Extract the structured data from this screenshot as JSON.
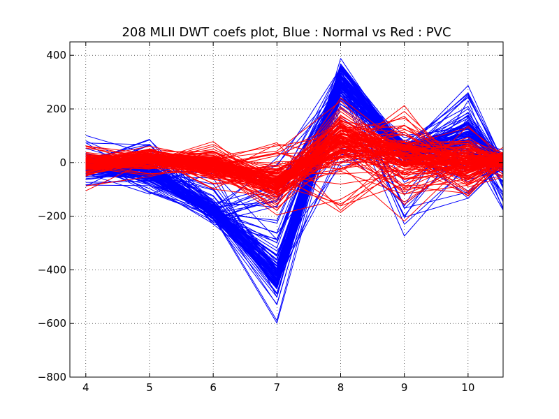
{
  "chart_data": {
    "type": "line",
    "title": "208 MLII DWT coefs plot, Blue : Normal vs Red : PVC",
    "xlabel": "",
    "ylabel": "",
    "xlim": [
      3.75,
      10.55
    ],
    "ylim": [
      -800,
      450
    ],
    "x": [
      4,
      5,
      6,
      7,
      8,
      9,
      10,
      10.55
    ],
    "xticks": [
      4,
      5,
      6,
      7,
      8,
      9,
      10
    ],
    "xtick_labels": [
      "4",
      "5",
      "6",
      "7",
      "8",
      "9",
      "10"
    ],
    "yticks": [
      -800,
      -600,
      -400,
      -200,
      0,
      200,
      400
    ],
    "ytick_labels": [
      "−800",
      "−600",
      "−400",
      "−200",
      "0",
      "200",
      "400"
    ],
    "grid": true,
    "series": [
      {
        "group": "normal",
        "color": "#0000ff",
        "profile_min": [
          -95,
          -125,
          -260,
          -605,
          -20,
          -305,
          -150,
          -190
        ],
        "profile_max": [
          105,
          95,
          20,
          30,
          425,
          110,
          290,
          60
        ],
        "profile_typical": [
          -10,
          -40,
          -180,
          -420,
          300,
          40,
          100,
          0
        ],
        "count": 120
      },
      {
        "group": "pvc",
        "color": "#ff0000",
        "profile_min": [
          -125,
          -60,
          -115,
          -200,
          -200,
          -230,
          -150,
          -60
        ],
        "profile_max": [
          65,
          70,
          85,
          100,
          265,
          225,
          160,
          60
        ],
        "profile_typical": [
          -5,
          10,
          -10,
          -80,
          80,
          20,
          0,
          5
        ],
        "count": 140
      }
    ]
  }
}
